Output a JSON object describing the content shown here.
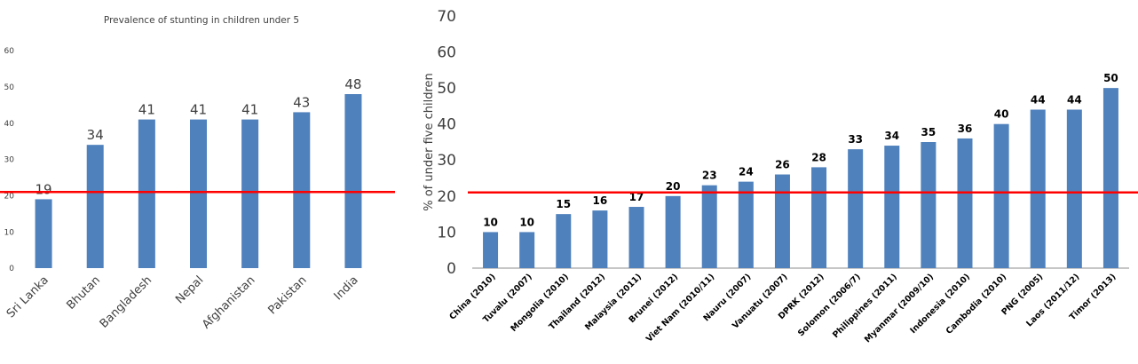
{
  "chart_data": [
    {
      "type": "bar",
      "title": "Prevalence of stunting in children under 5",
      "xlabel": "",
      "ylabel": "",
      "categories": [
        "Sri Lanka",
        "Bhutan",
        "Bangladesh",
        "Nepal",
        "Afghanistan",
        "Pakistan",
        "India"
      ],
      "values": [
        19,
        34,
        41,
        41,
        41,
        43,
        48
      ],
      "data_labels": [
        "19",
        "34",
        "41",
        "41",
        "41",
        "43",
        "48"
      ],
      "yticks": [
        "0",
        "10",
        "20",
        "30",
        "40",
        "50",
        "60"
      ],
      "ylim": [
        0,
        60
      ],
      "reference_line": 21,
      "grid": false,
      "bar_color": "#4f81bd",
      "reference_line_color": "#ff0000"
    },
    {
      "type": "bar",
      "title": "",
      "xlabel": "",
      "ylabel": "% of under five children",
      "categories": [
        "China (2010)",
        "Tuvalu (2007)",
        "Mongolia (2010)",
        "Thailand (2012)",
        "Malaysia (2011)",
        "Brunei (2012)",
        "Viet Nam (2010/11)",
        "Nauru (2007)",
        "Vanuatu (2007)",
        "DPRK (2012)",
        "Solomon (2006/7)",
        "Philippines (2011)",
        "Myanmar (2009/10)",
        "Indonesia (2010)",
        "Cambodia (2010)",
        "PNG (2005)",
        "Laos (2011/12)",
        "Timor (2013)"
      ],
      "values": [
        10,
        10,
        15,
        16,
        17,
        20,
        23,
        24,
        26,
        28,
        33,
        34,
        35,
        36,
        40,
        44,
        44,
        50
      ],
      "data_labels": [
        "10",
        "10",
        "15",
        "16",
        "17",
        "20",
        "23",
        "24",
        "26",
        "28",
        "33",
        "34",
        "35",
        "36",
        "40",
        "44",
        "44",
        "50"
      ],
      "yticks": [
        "0",
        "10",
        "20",
        "30",
        "40",
        "50",
        "60",
        "70"
      ],
      "ylim": [
        0,
        70
      ],
      "reference_line": 21,
      "grid": false,
      "bar_color": "#4f81bd",
      "reference_line_color": "#ff0000"
    }
  ]
}
